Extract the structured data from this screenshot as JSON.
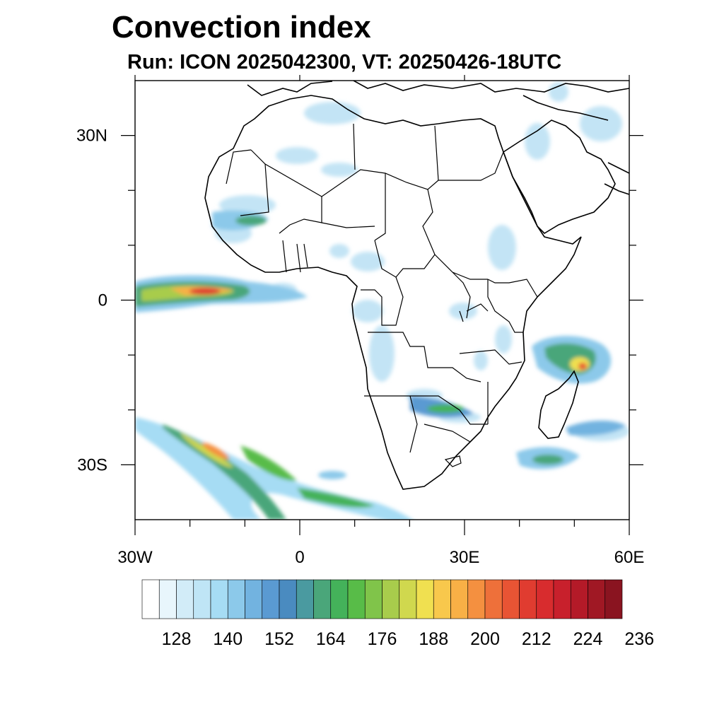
{
  "title": "Convection index",
  "subtitle": "Run: ICON 2025042300,  VT: 20250426-18UTC",
  "map": {
    "lon_range": [
      -30,
      60
    ],
    "lat_range": [
      -40,
      40
    ],
    "x_ticks": [
      {
        "value": -30,
        "label": "30W"
      },
      {
        "value": 0,
        "label": "0"
      },
      {
        "value": 30,
        "label": "30E"
      },
      {
        "value": 60,
        "label": "60E"
      }
    ],
    "y_ticks": [
      {
        "value": 30,
        "label": "30N"
      },
      {
        "value": 0,
        "label": "0"
      },
      {
        "value": -30,
        "label": "30S"
      }
    ],
    "minor_x_ticks": [
      -20,
      -10,
      10,
      20,
      40,
      50
    ],
    "minor_y_ticks": [
      20,
      10,
      -10,
      -20
    ]
  },
  "colorbar": {
    "colors": [
      "#ffffff",
      "#e8f6fc",
      "#d2ecf8",
      "#bfe5f6",
      "#a6dcf4",
      "#8cc9ea",
      "#72b3e0",
      "#5a9ad2",
      "#4a8bc0",
      "#4a9aa0",
      "#4aa67a",
      "#44b25a",
      "#58bc48",
      "#80c44a",
      "#a8cc4c",
      "#d0d84e",
      "#f0e050",
      "#f8c84c",
      "#f8b046",
      "#f49040",
      "#ee703a",
      "#e85434",
      "#e03c30",
      "#d82c2e",
      "#c8202c",
      "#b41a28",
      "#a01824",
      "#8a1420"
    ],
    "labels": [
      "128",
      "140",
      "152",
      "164",
      "176",
      "188",
      "200",
      "212",
      "224",
      "236"
    ]
  }
}
